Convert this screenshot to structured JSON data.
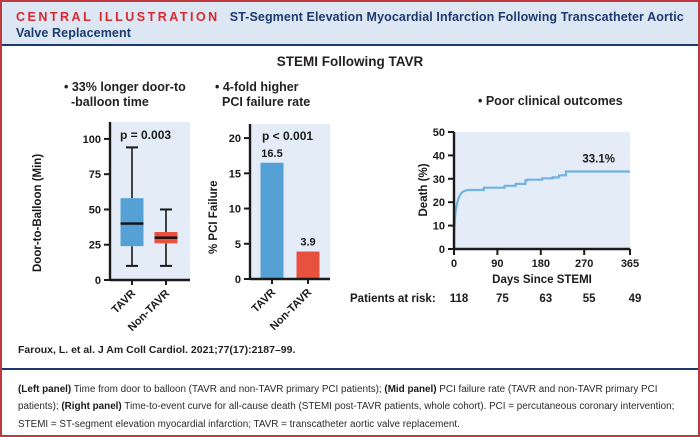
{
  "figure": {
    "eyebrow": "CENTRAL ILLUSTRATION",
    "title": "ST-Segment Elevation Myocardial Infarction Following Transcatheter Aortic Valve Replacement",
    "chart_title": "STEMI Following TAVR",
    "citation": "Faroux, L. et al. J Am Coll Cardiol. 2021;77(17):2187–99."
  },
  "bullets": {
    "left_line1": "• 33% longer door-to",
    "left_line2": "-balloon time",
    "mid_line1": "• 4-fold higher",
    "mid_line2": "PCI failure rate",
    "right": "• Poor clinical outcomes"
  },
  "caption": {
    "segments": [
      {
        "text": "(Left panel)",
        "bold": true
      },
      {
        "text": " Time from door to balloon (TAVR and non-TAVR primary PCI patients); ",
        "bold": false
      },
      {
        "text": "(Mid panel)",
        "bold": true
      },
      {
        "text": " PCI failure rate (TAVR and non-TAVR primary PCI patients); ",
        "bold": false
      },
      {
        "text": "(Right panel)",
        "bold": true
      },
      {
        "text": " Time-to-event curve for all-cause death (STEMI post-TAVR patients, whole cohort). PCI = percutaneous coronary intervention; STEMI = ST-segment elevation myocardial infarction; TAVR = transcatheter aortic valve replacement.",
        "bold": false
      }
    ]
  },
  "colors": {
    "frame_border": "#bf3a3f",
    "header_bg": "#dce7f3",
    "eyebrow_red": "#d7282f",
    "navy": "#1c3a6e",
    "plot_bg": "#e4edf7",
    "axis": "#1a1a1a",
    "tavr_blue": "#55a0d5",
    "non_tavr_red": "#e8513d",
    "curve_blue": "#72b2e0"
  },
  "chart_data": [
    {
      "type": "box",
      "p_value": "p = 0.003",
      "ylabel": "Door-to-Balloon (Min)",
      "ylim": [
        0,
        112
      ],
      "yticks": [
        0,
        25,
        50,
        75,
        100
      ],
      "categories": [
        "TAVR",
        "Non-TAVR"
      ],
      "series": [
        {
          "name": "TAVR",
          "min": 10,
          "q1": 24,
          "median": 40,
          "q3": 58,
          "max": 94,
          "color": "#55a0d5"
        },
        {
          "name": "Non-TAVR",
          "min": 10,
          "q1": 26,
          "median": 30,
          "q3": 34,
          "max": 50,
          "color": "#e8513d"
        }
      ]
    },
    {
      "type": "bar",
      "p_value": "p < 0.001",
      "ylabel": "% PCI Failure",
      "ylim": [
        0,
        22
      ],
      "yticks": [
        0,
        5,
        10,
        15,
        20
      ],
      "categories": [
        "TAVR",
        "Non-TAVR"
      ],
      "values": [
        16.5,
        3.9
      ],
      "colors": [
        "#55a0d5",
        "#e8513d"
      ]
    },
    {
      "type": "line",
      "ylabel": "Death (%)",
      "xlabel": "Days Since STEMI",
      "ylim": [
        0,
        50
      ],
      "yticks": [
        0,
        10,
        20,
        30,
        40,
        50
      ],
      "xlim": [
        0,
        365
      ],
      "xticks": [
        0,
        90,
        180,
        270,
        365
      ],
      "annotation": "33.1%",
      "at_risk_label": "Patients at risk:",
      "at_risk": [
        118,
        75,
        63,
        55,
        49
      ],
      "color": "#72b2e0",
      "points": [
        [
          0,
          0
        ],
        [
          0.5,
          7
        ],
        [
          1,
          10
        ],
        [
          2,
          13
        ],
        [
          3,
          15.5
        ],
        [
          5,
          18
        ],
        [
          7,
          20
        ],
        [
          10,
          22
        ],
        [
          14,
          23.5
        ],
        [
          18,
          24.4
        ],
        [
          24,
          25
        ],
        [
          30,
          25.2
        ],
        [
          62,
          25.2
        ],
        [
          62,
          26.2
        ],
        [
          105,
          26.2
        ],
        [
          105,
          27
        ],
        [
          128,
          27
        ],
        [
          128,
          27.8
        ],
        [
          148,
          27.8
        ],
        [
          148,
          29.3
        ],
        [
          152,
          29.3
        ],
        [
          152,
          29.6
        ],
        [
          183,
          29.6
        ],
        [
          183,
          30.2
        ],
        [
          205,
          30.2
        ],
        [
          205,
          30.6
        ],
        [
          218,
          30.6
        ],
        [
          218,
          31.5
        ],
        [
          232,
          31.5
        ],
        [
          232,
          33.1
        ],
        [
          365,
          33.1
        ]
      ]
    }
  ]
}
